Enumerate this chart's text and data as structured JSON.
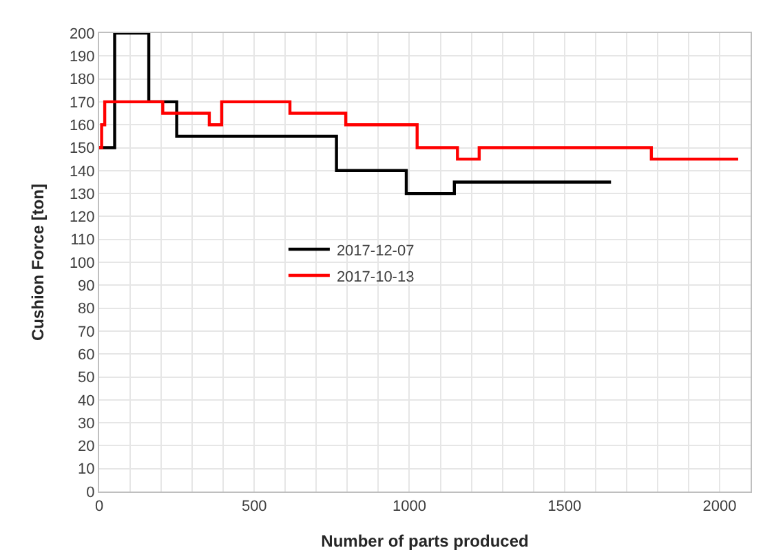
{
  "chart_data": {
    "type": "step",
    "xlabel": "Number of parts produced",
    "ylabel": "Cushion Force [ton]",
    "series": [
      {
        "name": "2017-12-07",
        "color": "#000000",
        "x": [
          0,
          50,
          160,
          250,
          765,
          990,
          1145,
          1650
        ],
        "values": [
          150,
          200,
          170,
          155,
          140,
          130,
          135,
          135
        ]
      },
      {
        "name": "2017-10-13",
        "color": "#ff0000",
        "x": [
          0,
          8,
          18,
          205,
          355,
          395,
          615,
          795,
          1025,
          1155,
          1225,
          1780,
          2060
        ],
        "values": [
          150,
          160,
          170,
          165,
          160,
          170,
          165,
          160,
          150,
          145,
          150,
          145,
          145
        ]
      }
    ],
    "xlim": [
      0,
      2100
    ],
    "xticks": [
      0,
      {
        "value": 100,
        "label": null
      },
      {
        "value": 200,
        "label": null
      },
      {
        "value": 300,
        "label": null
      },
      {
        "value": 400,
        "label": null
      },
      500,
      {
        "value": 600,
        "label": null
      },
      {
        "value": 700,
        "label": null
      },
      {
        "value": 800,
        "label": null
      },
      {
        "value": 900,
        "label": null
      },
      1000,
      {
        "value": 1100,
        "label": null
      },
      {
        "value": 1200,
        "label": null
      },
      {
        "value": 1300,
        "label": null
      },
      {
        "value": 1400,
        "label": null
      },
      1500,
      {
        "value": 1600,
        "label": null
      },
      {
        "value": 1700,
        "label": null
      },
      {
        "value": 1800,
        "label": null
      },
      {
        "value": 1900,
        "label": null
      },
      2000
    ],
    "ylim": [
      0,
      200
    ],
    "yticks": [
      0,
      10,
      20,
      30,
      40,
      50,
      60,
      70,
      80,
      90,
      100,
      110,
      120,
      130,
      140,
      150,
      160,
      170,
      180,
      190,
      200
    ],
    "grid": true,
    "legend": "center left",
    "line_style": "solid",
    "marker": "none"
  }
}
